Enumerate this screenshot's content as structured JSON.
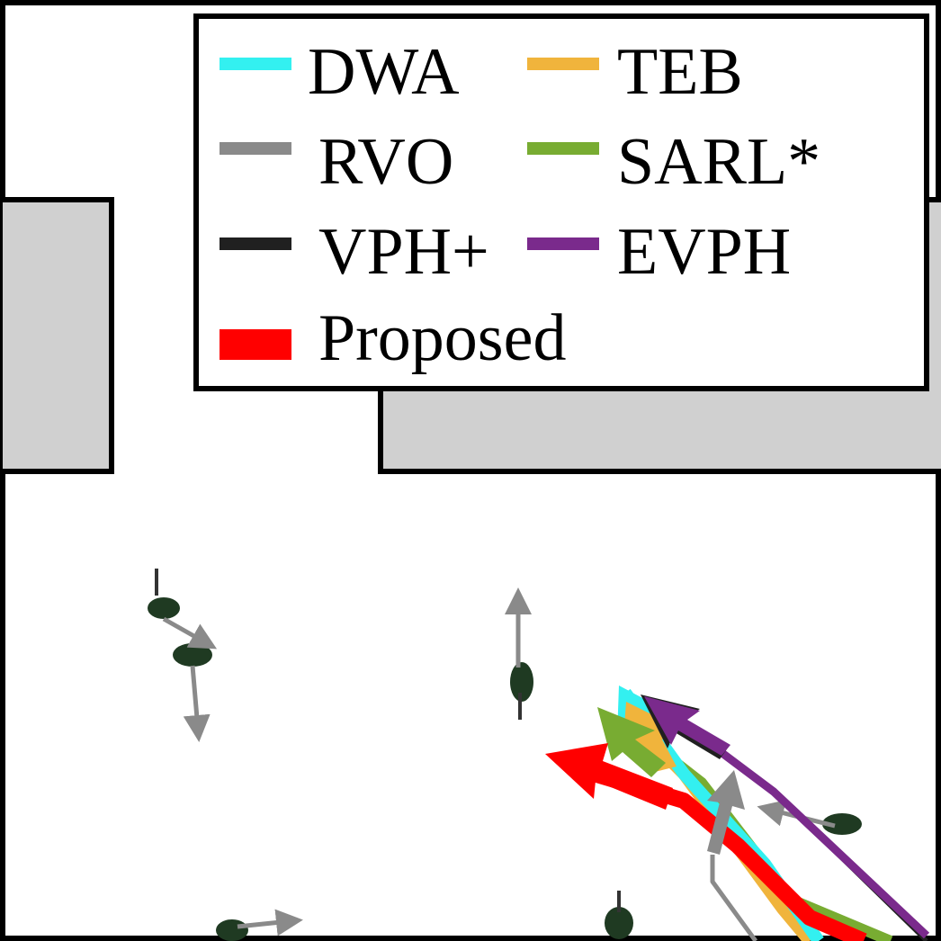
{
  "legend": {
    "items": [
      {
        "label": "DWA",
        "color": "#33f0f0"
      },
      {
        "label": "TEB",
        "color": "#f0b43c"
      },
      {
        "label": "RVO",
        "color": "#8a8a8a"
      },
      {
        "label": "SARL*",
        "color": "#78ac32"
      },
      {
        "label": "VPH+",
        "color": "#202020"
      },
      {
        "label": "EVPH",
        "color": "#7a2a8c"
      },
      {
        "label": "Proposed",
        "color": "#ff0000"
      }
    ]
  },
  "colors": {
    "obstacle_fill": "#d0d0d0",
    "obstacle_stroke": "#000000",
    "velocity_arrow": "#8a8a8a",
    "pedestrian": "#1f3a22"
  }
}
